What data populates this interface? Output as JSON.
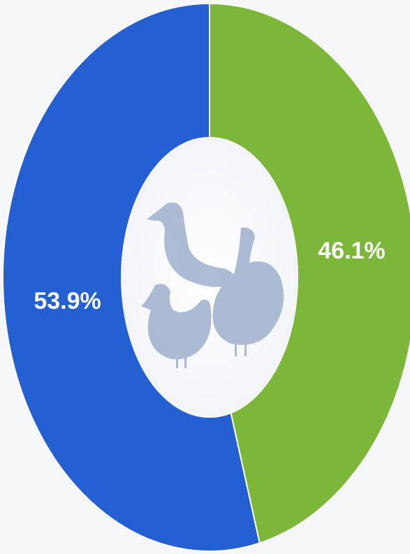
{
  "chart_data": {
    "type": "pie",
    "series": [
      {
        "color": "#2460d2",
        "values": [
          53.9,
          46.1
        ]
      }
    ],
    "colors": [
      "#2460d2",
      "#7db73a"
    ],
    "values": [
      53.9,
      46.1
    ],
    "value_labels": [
      "53.9%",
      "46.1%"
    ]
  }
}
